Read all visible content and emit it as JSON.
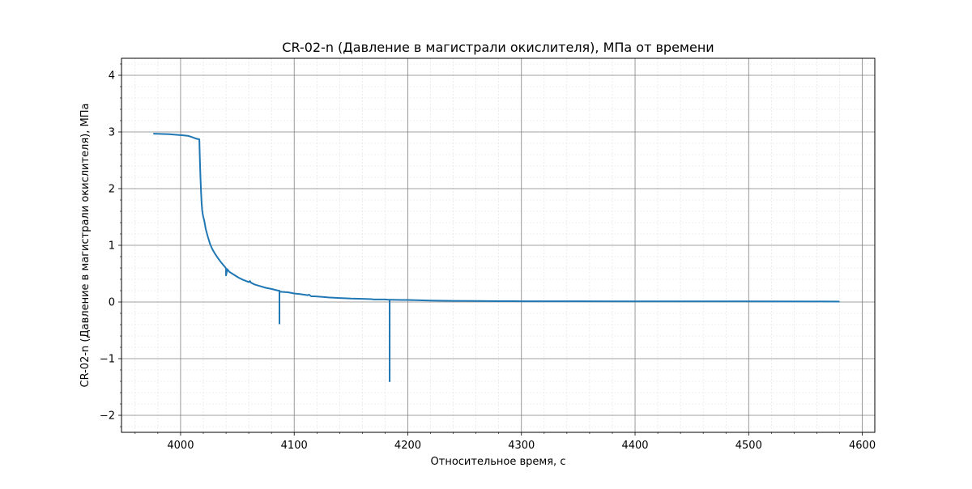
{
  "chart_data": {
    "type": "line",
    "title": "CR-02-n (Давление в магистрали окислителя), МПа от времени",
    "xlabel": "Относительное время, с",
    "ylabel": "CR-02-n (Давление в магистрали окислителя), МПа",
    "xlim": [
      3948,
      4611
    ],
    "ylim": [
      -2.3,
      4.3
    ],
    "x_ticks": [
      4000,
      4100,
      4200,
      4300,
      4400,
      4500,
      4600
    ],
    "x_tick_labels": [
      "4000",
      "4100",
      "4200",
      "4300",
      "4400",
      "4500",
      "4600"
    ],
    "y_ticks": [
      -2,
      -1,
      0,
      1,
      2,
      3,
      4
    ],
    "y_tick_labels": [
      "−2",
      "−1",
      "0",
      "1",
      "2",
      "3",
      "4"
    ],
    "grid": true,
    "minor_grid": true,
    "colors": {
      "line": "#1f77b4",
      "major_grid": "#808080",
      "minor_grid": "#e0e0e0"
    },
    "series": [
      {
        "x": [
          3976,
          3990,
          4003,
          4007,
          4010,
          4014,
          4016.5,
          4017,
          4017.5,
          4018,
          4018.5,
          4019,
          4019.5,
          4020,
          4021,
          4022,
          4024,
          4026,
          4028,
          4030,
          4033,
          4036,
          4039,
          4040,
          4040,
          4041,
          4041,
          4043,
          4047,
          4051,
          4055,
          4059,
          4060,
          4061,
          4062,
          4065,
          4070,
          4075,
          4080,
          4086,
          4087,
          4087,
          4087,
          4088,
          4095,
          4100,
          4105,
          4112,
          4113,
          4115,
          4118,
          4125,
          4130,
          4140,
          4150,
          4160,
          4168,
          4170,
          4180,
          4183,
          4184,
          4184,
          4184,
          4185,
          4195,
          4200,
          4210,
          4220,
          4240,
          4260,
          4280,
          4300,
          4350,
          4400,
          4450,
          4500,
          4550,
          4580
        ],
        "y": [
          2.97,
          2.96,
          2.94,
          2.93,
          2.91,
          2.88,
          2.87,
          2.5,
          2.2,
          1.95,
          1.75,
          1.62,
          1.55,
          1.5,
          1.42,
          1.3,
          1.15,
          1.02,
          0.93,
          0.86,
          0.77,
          0.69,
          0.62,
          0.59,
          0.47,
          0.56,
          0.58,
          0.53,
          0.48,
          0.43,
          0.39,
          0.36,
          0.35,
          0.37,
          0.34,
          0.31,
          0.28,
          0.25,
          0.23,
          0.2,
          0.2,
          -0.38,
          0.18,
          0.18,
          0.17,
          0.15,
          0.14,
          0.12,
          0.13,
          0.1,
          0.1,
          0.09,
          0.08,
          0.07,
          0.06,
          0.055,
          0.05,
          0.045,
          0.045,
          0.04,
          0.04,
          -1.4,
          0.04,
          0.04,
          0.035,
          0.035,
          0.03,
          0.025,
          0.02,
          0.018,
          0.015,
          0.013,
          0.012,
          0.011,
          0.01,
          0.01,
          0.009,
          0.008
        ]
      }
    ]
  }
}
